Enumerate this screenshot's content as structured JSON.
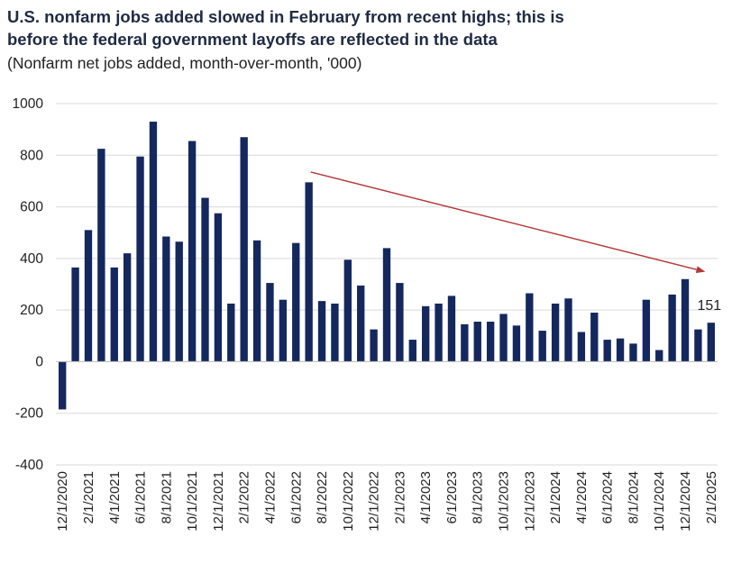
{
  "chart_data": {
    "type": "bar",
    "title_line1": "U.S. nonfarm jobs added slowed in February from recent highs; this is",
    "title_line2": "before the federal government layoffs are reflected in the data",
    "subtitle": "(Nonfarm net jobs added, month-over-month, '000)",
    "ylim": [
      -400,
      1000
    ],
    "yticks": [
      -400,
      -200,
      0,
      200,
      400,
      600,
      800,
      1000
    ],
    "grid": true,
    "bar_color": "#14285e",
    "arrow_color": "#b5383a",
    "categories": [
      "12/1/2020",
      "1/1/2021",
      "2/1/2021",
      "3/1/2021",
      "4/1/2021",
      "5/1/2021",
      "6/1/2021",
      "7/1/2021",
      "8/1/2021",
      "9/1/2021",
      "10/1/2021",
      "11/1/2021",
      "12/1/2021",
      "1/1/2022",
      "2/1/2022",
      "3/1/2022",
      "4/1/2022",
      "5/1/2022",
      "6/1/2022",
      "7/1/2022",
      "8/1/2022",
      "9/1/2022",
      "10/1/2022",
      "11/1/2022",
      "12/1/2022",
      "1/1/2023",
      "2/1/2023",
      "3/1/2023",
      "4/1/2023",
      "5/1/2023",
      "6/1/2023",
      "7/1/2023",
      "8/1/2023",
      "9/1/2023",
      "10/1/2023",
      "11/1/2023",
      "12/1/2023",
      "1/1/2024",
      "2/1/2024",
      "3/1/2024",
      "4/1/2024",
      "5/1/2024",
      "6/1/2024",
      "7/1/2024",
      "8/1/2024",
      "9/1/2024",
      "10/1/2024",
      "11/1/2024",
      "12/1/2024",
      "1/1/2025",
      "2/1/2025"
    ],
    "values": [
      -185,
      365,
      510,
      825,
      365,
      420,
      795,
      930,
      485,
      465,
      855,
      635,
      575,
      225,
      870,
      470,
      305,
      240,
      460,
      695,
      235,
      225,
      395,
      295,
      125,
      440,
      305,
      85,
      215,
      225,
      255,
      145,
      155,
      155,
      185,
      140,
      265,
      120,
      225,
      245,
      115,
      190,
      85,
      90,
      70,
      240,
      45,
      260,
      320,
      125,
      151
    ],
    "x_tick_labels": [
      "12/1/2020",
      "2/1/2021",
      "4/1/2021",
      "6/1/2021",
      "8/1/2021",
      "10/1/2021",
      "12/1/2021",
      "2/1/2022",
      "4/1/2022",
      "6/1/2022",
      "8/1/2022",
      "10/1/2022",
      "12/1/2022",
      "2/1/2023",
      "4/1/2023",
      "6/1/2023",
      "8/1/2023",
      "10/1/2023",
      "12/1/2023",
      "2/1/2024",
      "4/1/2024",
      "6/1/2024",
      "8/1/2024",
      "10/1/2024",
      "12/1/2024",
      "2/1/2025"
    ],
    "data_labels": [
      {
        "category": "2/1/2025",
        "text": "151"
      }
    ],
    "trend_arrow": {
      "from_category": "7/1/2022",
      "from_value": 735,
      "to_category": "1/1/2025",
      "to_value": 350
    }
  }
}
